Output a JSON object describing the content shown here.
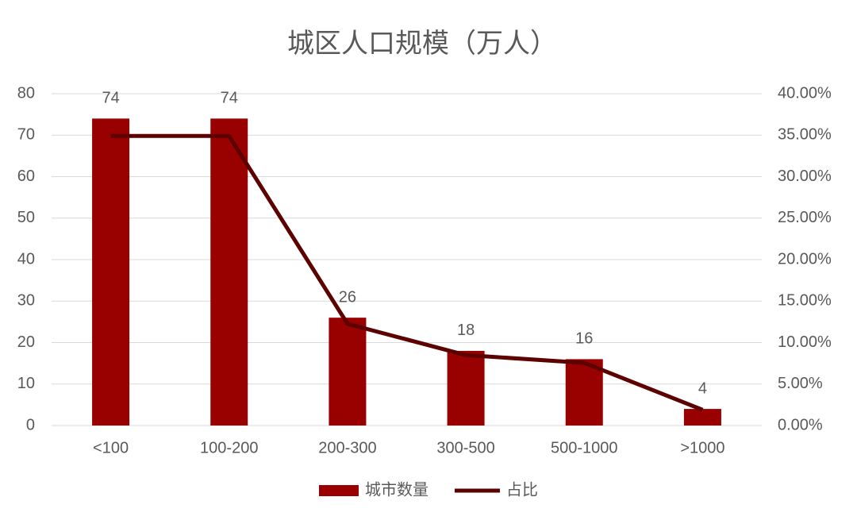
{
  "chart_data": {
    "type": "bar",
    "title": "城区人口规模（万人）",
    "categories": [
      "<100",
      "100-200",
      "200-300",
      "300-500",
      "500-1000",
      ">1000"
    ],
    "series": [
      {
        "name": "城市数量",
        "type": "bar",
        "color": "#990000",
        "values": [
          74,
          74,
          26,
          18,
          16,
          4
        ]
      },
      {
        "name": "占比",
        "type": "line",
        "axis": "y2",
        "color": "#5c0000",
        "values": [
          34.9,
          34.9,
          12.26,
          8.49,
          7.55,
          1.89
        ]
      }
    ],
    "ylim": [
      0,
      80
    ],
    "yticks": [
      0,
      10,
      20,
      30,
      40,
      50,
      60,
      70,
      80
    ],
    "y2lim": [
      0,
      40
    ],
    "y2ticks": [
      {
        "value": 0,
        "label": "0.00%"
      },
      {
        "value": 5,
        "label": "5.00%"
      },
      {
        "value": 10,
        "label": "10.00%"
      },
      {
        "value": 15,
        "label": "15.00%"
      },
      {
        "value": 20,
        "label": "20.00%"
      },
      {
        "value": 25,
        "label": "25.00%"
      },
      {
        "value": 30,
        "label": "30.00%"
      },
      {
        "value": 35,
        "label": "35.00%"
      },
      {
        "value": 40,
        "label": "40.00%"
      }
    ],
    "grid": true,
    "legend": "bottom"
  }
}
